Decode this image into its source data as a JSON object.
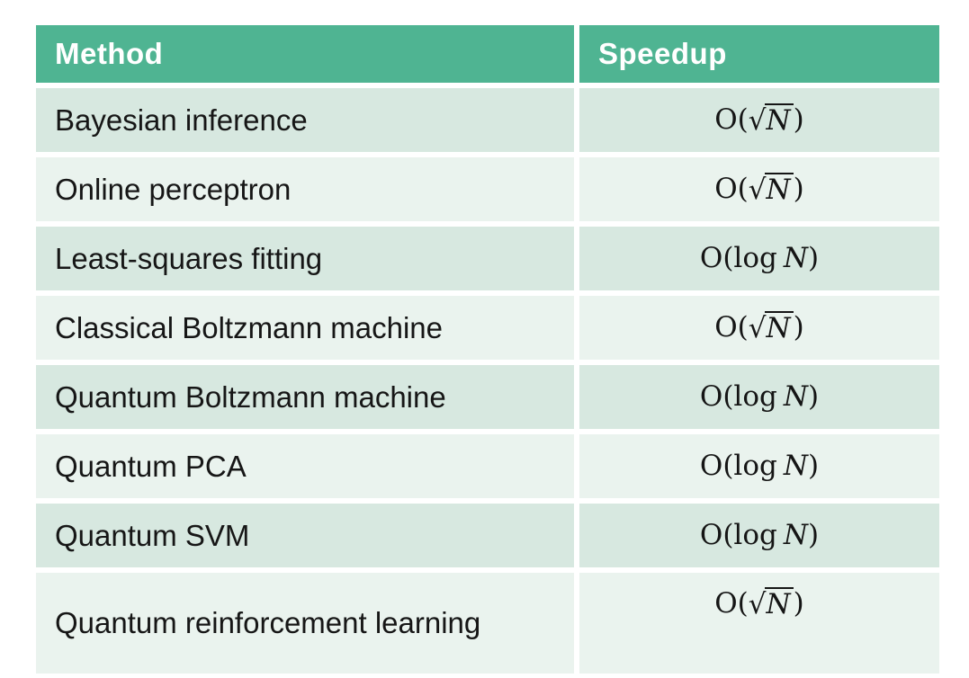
{
  "colors": {
    "header_bg": "#4fb492",
    "header_text": "#ffffff",
    "row_dark_bg": "#d7e8e0",
    "row_light_bg": "#eaf3ee",
    "body_text": "#161616",
    "page_bg": "#ffffff"
  },
  "table": {
    "header": {
      "method": "Method",
      "speedup": "Speedup"
    },
    "rows": [
      {
        "method": "Bayesian inference",
        "shade": "dark",
        "speedup": {
          "kind": "sqrt",
          "prefix": "O(",
          "radical": "√",
          "arg": "N",
          "suffix": ")",
          "display": "O(√N)"
        }
      },
      {
        "method": "Online perceptron",
        "shade": "light",
        "speedup": {
          "kind": "sqrt",
          "prefix": "O(",
          "radical": "√",
          "arg": "N",
          "suffix": ")",
          "display": "O(√N)"
        }
      },
      {
        "method": "Least-squares fitting",
        "shade": "dark",
        "speedup": {
          "kind": "log",
          "prefix": "O(",
          "fn": "log",
          "arg": "N",
          "suffix": ")",
          "display": "O(log N)"
        }
      },
      {
        "method": "Classical Boltzmann machine",
        "shade": "light",
        "speedup": {
          "kind": "sqrt",
          "prefix": "O(",
          "radical": "√",
          "arg": "N",
          "suffix": ")",
          "display": "O(√N)"
        }
      },
      {
        "method": "Quantum Boltzmann machine",
        "shade": "dark",
        "speedup": {
          "kind": "log",
          "prefix": "O(",
          "fn": "log",
          "arg": "N",
          "suffix": ")",
          "display": "O(log N)"
        }
      },
      {
        "method": "Quantum PCA",
        "shade": "light",
        "speedup": {
          "kind": "log",
          "prefix": "O(",
          "fn": "log",
          "arg": "N",
          "suffix": ")",
          "display": "O(log N)"
        }
      },
      {
        "method": "Quantum SVM",
        "shade": "dark",
        "speedup": {
          "kind": "log",
          "prefix": "O(",
          "fn": "log",
          "arg": "N",
          "suffix": ")",
          "display": "O(log N)"
        }
      },
      {
        "method": "Quantum reinforcement learning",
        "shade": "light",
        "tall": true,
        "speedup": {
          "kind": "sqrt",
          "prefix": "O(",
          "radical": "√",
          "arg": "N",
          "suffix": ")",
          "display": "O(√N)"
        }
      }
    ]
  },
  "chart_data": {
    "type": "table",
    "title": "",
    "columns": [
      "Method",
      "Speedup"
    ],
    "rows": [
      [
        "Bayesian inference",
        "O(√N)"
      ],
      [
        "Online perceptron",
        "O(√N)"
      ],
      [
        "Least-squares fitting",
        "O(log N)"
      ],
      [
        "Classical Boltzmann machine",
        "O(√N)"
      ],
      [
        "Quantum Boltzmann machine",
        "O(log N)"
      ],
      [
        "Quantum PCA",
        "O(log N)"
      ],
      [
        "Quantum SVM",
        "O(log N)"
      ],
      [
        "Quantum reinforcement learning",
        "O(√N)"
      ]
    ]
  }
}
